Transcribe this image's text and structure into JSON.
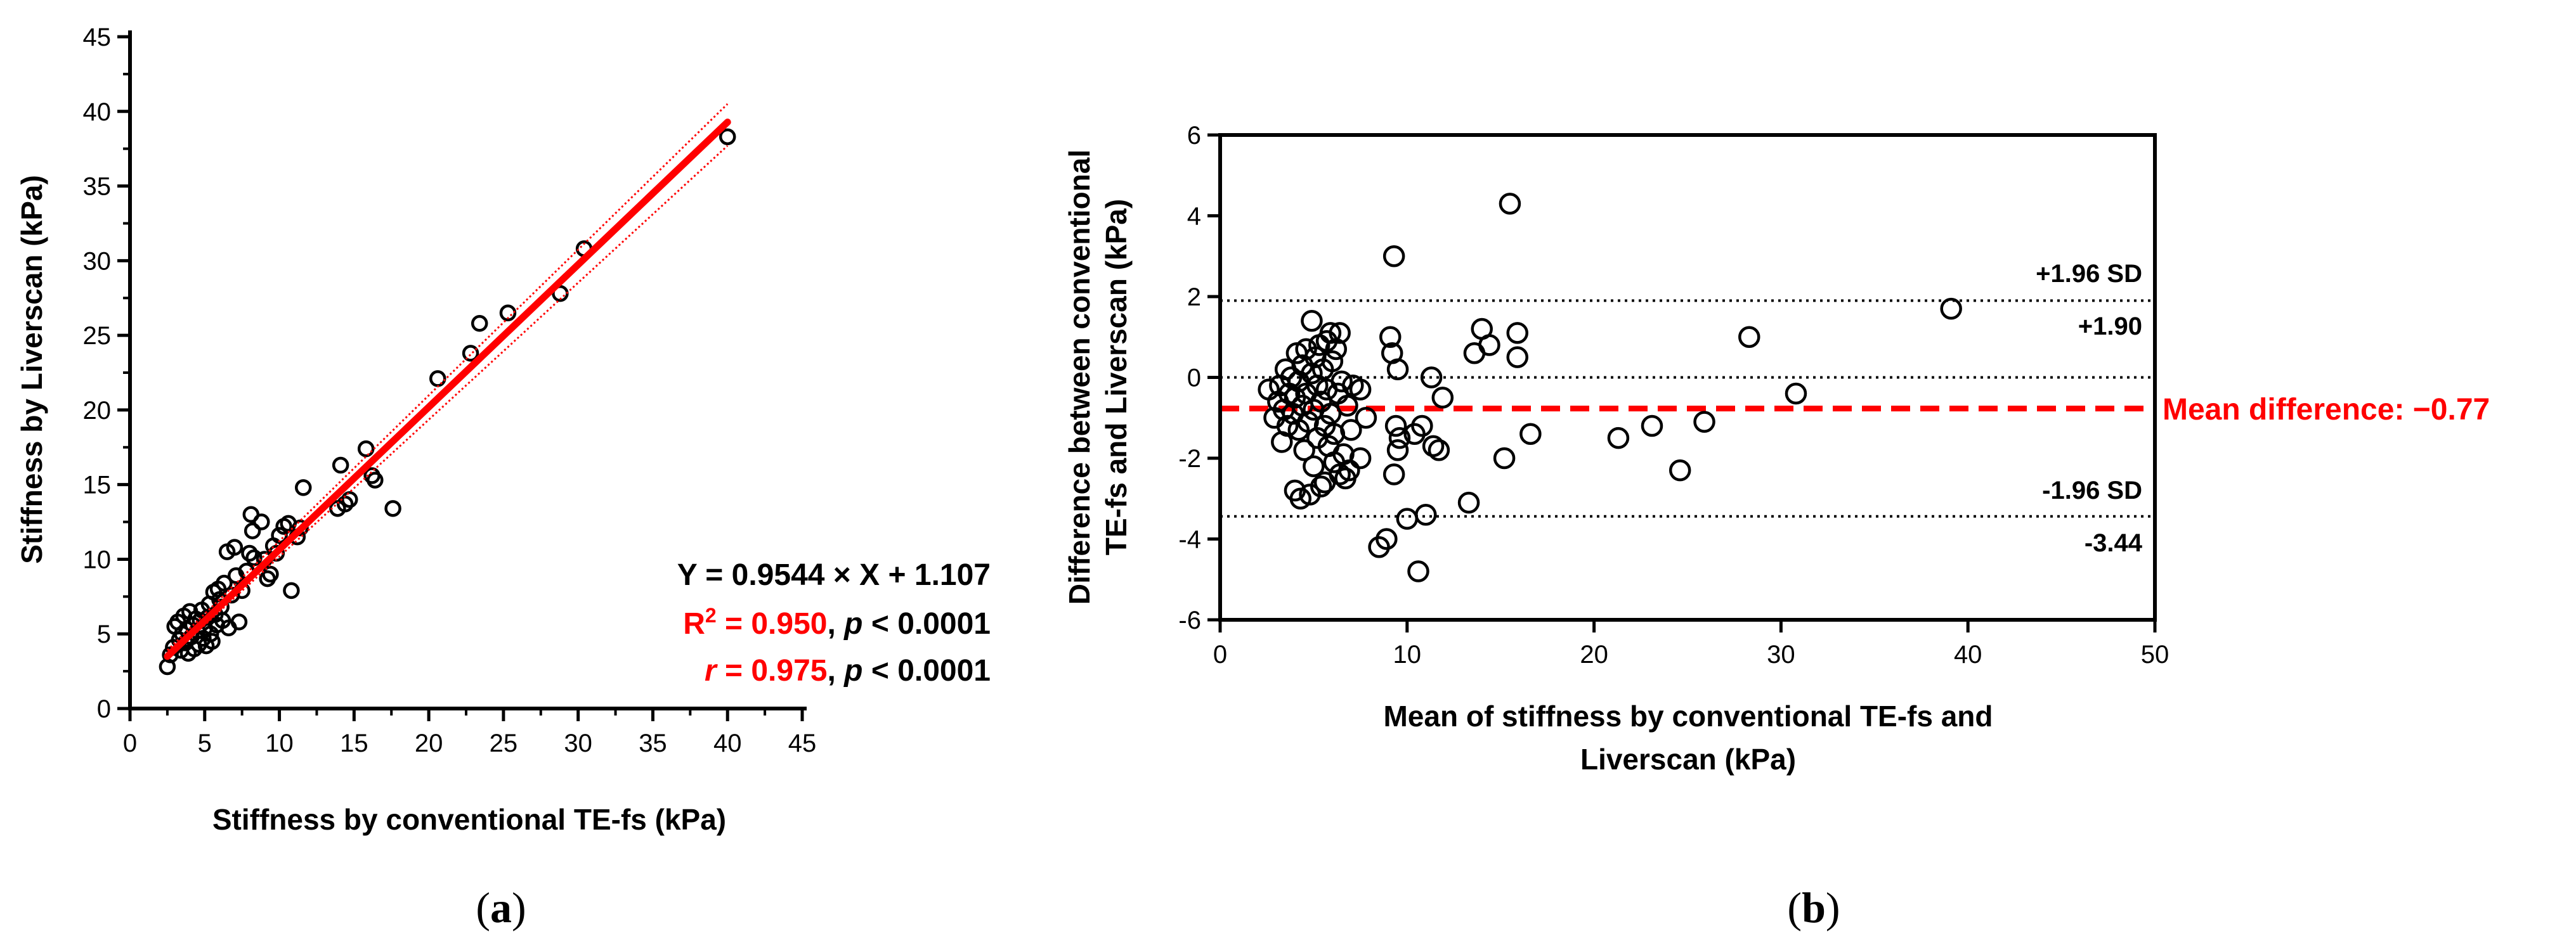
{
  "chart_data": [
    {
      "id": "a",
      "type": "scatter",
      "caption_prefix": "(",
      "caption_letter": "a",
      "caption_suffix": ")",
      "xlabel": "Stiffness by conventional TE-fs (kPa)",
      "ylabel": "Stiffness by Liverscan (kPa)",
      "xlim": [
        0,
        45
      ],
      "ylim": [
        0,
        45
      ],
      "xticks": [
        0,
        5,
        10,
        15,
        20,
        25,
        30,
        35,
        40,
        45
      ],
      "yticks": [
        0,
        5,
        10,
        15,
        20,
        25,
        30,
        35,
        40,
        45
      ],
      "regression": {
        "slope": 0.9544,
        "intercept": 1.107,
        "x_range": [
          2.5,
          40
        ],
        "color": "#ff0000",
        "ci_upper": [
          [
            2.5,
            3.9
          ],
          [
            40,
            40.5
          ]
        ],
        "ci_lower": [
          [
            2.5,
            3.3
          ],
          [
            40,
            37.7
          ]
        ]
      },
      "stats": {
        "equation": "Y = 0.9544 × X + 1.107",
        "r2_label": "R",
        "r2_sup": "2",
        "r2_value": " = 0.950",
        "r2_p_sep": ", ",
        "r2_p": "p",
        "r2_p_value": " < 0.0001",
        "r_label": "r",
        "r_value": " = 0.975",
        "r_p_sep": ", ",
        "r_p": "p",
        "r_p_value": " < 0.0001",
        "highlight_color": "#ff0000"
      },
      "points": [
        [
          2.5,
          2.8
        ],
        [
          2.7,
          3.6
        ],
        [
          2.9,
          4.1
        ],
        [
          3.0,
          5.5
        ],
        [
          3.2,
          5.8
        ],
        [
          3.3,
          4.6
        ],
        [
          3.4,
          3.9
        ],
        [
          3.5,
          5.0
        ],
        [
          3.6,
          6.2
        ],
        [
          3.7,
          4.4
        ],
        [
          3.8,
          5.3
        ],
        [
          3.9,
          3.7
        ],
        [
          4.0,
          6.5
        ],
        [
          4.1,
          4.8
        ],
        [
          4.2,
          5.6
        ],
        [
          4.3,
          4.0
        ],
        [
          4.4,
          6.0
        ],
        [
          4.5,
          5.2
        ],
        [
          4.6,
          4.3
        ],
        [
          4.7,
          5.9
        ],
        [
          4.8,
          6.6
        ],
        [
          4.9,
          4.7
        ],
        [
          5.0,
          5.4
        ],
        [
          5.1,
          4.2
        ],
        [
          5.2,
          6.1
        ],
        [
          5.3,
          7.0
        ],
        [
          5.4,
          5.0
        ],
        [
          5.5,
          4.5
        ],
        [
          5.6,
          7.8
        ],
        [
          5.7,
          6.3
        ],
        [
          5.8,
          5.6
        ],
        [
          5.9,
          8.0
        ],
        [
          6.0,
          7.3
        ],
        [
          6.1,
          6.8
        ],
        [
          6.2,
          5.9
        ],
        [
          6.3,
          8.4
        ],
        [
          6.5,
          10.5
        ],
        [
          6.6,
          5.4
        ],
        [
          6.8,
          7.6
        ],
        [
          7.0,
          10.8
        ],
        [
          7.1,
          8.9
        ],
        [
          7.3,
          5.8
        ],
        [
          7.5,
          7.9
        ],
        [
          7.8,
          9.2
        ],
        [
          8.0,
          10.4
        ],
        [
          8.1,
          13.0
        ],
        [
          8.2,
          11.9
        ],
        [
          8.3,
          10.1
        ],
        [
          8.8,
          12.5
        ],
        [
          9.0,
          10.0
        ],
        [
          9.2,
          8.7
        ],
        [
          9.4,
          9.0
        ],
        [
          9.6,
          10.9
        ],
        [
          9.8,
          10.4
        ],
        [
          10.0,
          11.6
        ],
        [
          10.3,
          12.2
        ],
        [
          10.6,
          12.4
        ],
        [
          10.8,
          7.9
        ],
        [
          11.2,
          11.5
        ],
        [
          11.4,
          12.1
        ],
        [
          11.6,
          14.8
        ],
        [
          13.9,
          13.4
        ],
        [
          14.1,
          16.3
        ],
        [
          14.4,
          13.7
        ],
        [
          14.7,
          14.0
        ],
        [
          15.8,
          17.4
        ],
        [
          16.2,
          15.6
        ],
        [
          16.4,
          15.3
        ],
        [
          17.6,
          13.4
        ],
        [
          20.6,
          22.1
        ],
        [
          22.8,
          23.8
        ],
        [
          23.4,
          25.8
        ],
        [
          25.3,
          26.5
        ],
        [
          28.8,
          27.8
        ],
        [
          30.4,
          30.8
        ],
        [
          40.0,
          38.3
        ]
      ]
    },
    {
      "id": "b",
      "type": "scatter",
      "caption_prefix": "(",
      "caption_letter": "b",
      "caption_suffix": ")",
      "xlabel": "Mean of stiffness by conventional TE-fs and Liverscan (kPa)",
      "xlabel_lines": [
        "Mean of stiffness by conventional TE-fs and",
        "Liverscan (kPa)"
      ],
      "ylabel": "Difference between conventional TE-fs and Liverscan (kPa)",
      "ylabel_lines": [
        "Difference between conventional",
        "TE-fs and Liverscan (kPa)"
      ],
      "xlim": [
        0,
        50
      ],
      "ylim": [
        -6,
        6
      ],
      "xticks": [
        0,
        10,
        20,
        30,
        40,
        50
      ],
      "yticks": [
        -6,
        -4,
        -2,
        0,
        2,
        4,
        6
      ],
      "mean_difference": -0.77,
      "mean_label": "Mean difference: −0.77",
      "mean_color": "#ff0000",
      "upper_loa": 1.9,
      "upper_loa_label": "+1.96 SD",
      "upper_loa_value_label": "+1.90",
      "lower_loa": -3.44,
      "lower_loa_label": "-1.96 SD",
      "lower_loa_value_label": "-3.44",
      "zero_line": 0,
      "points": [
        [
          2.6,
          -0.3
        ],
        [
          2.9,
          -1.0
        ],
        [
          3.1,
          -0.6
        ],
        [
          3.2,
          -0.2
        ],
        [
          3.3,
          -1.6
        ],
        [
          3.4,
          -0.8
        ],
        [
          3.5,
          0.2
        ],
        [
          3.6,
          -1.2
        ],
        [
          3.7,
          -0.4
        ],
        [
          3.8,
          0.0
        ],
        [
          3.9,
          -0.9
        ],
        [
          4.0,
          -2.8
        ],
        [
          4.0,
          -0.5
        ],
        [
          4.1,
          0.6
        ],
        [
          4.2,
          -1.3
        ],
        [
          4.2,
          -0.1
        ],
        [
          4.3,
          -3.0
        ],
        [
          4.4,
          -0.7
        ],
        [
          4.4,
          0.3
        ],
        [
          4.5,
          -1.8
        ],
        [
          4.6,
          -0.4
        ],
        [
          4.6,
          0.7
        ],
        [
          4.7,
          -1.1
        ],
        [
          4.8,
          -2.9
        ],
        [
          4.9,
          1.4
        ],
        [
          4.9,
          0.1
        ],
        [
          5.0,
          -0.8
        ],
        [
          5.0,
          -2.2
        ],
        [
          5.1,
          0.5
        ],
        [
          5.2,
          -1.5
        ],
        [
          5.2,
          -0.2
        ],
        [
          5.3,
          0.8
        ],
        [
          5.4,
          -2.7
        ],
        [
          5.4,
          -0.6
        ],
        [
          5.5,
          0.2
        ],
        [
          5.6,
          -1.2
        ],
        [
          5.6,
          -2.6
        ],
        [
          5.7,
          0.9
        ],
        [
          5.7,
          -0.3
        ],
        [
          5.8,
          -1.7
        ],
        [
          5.9,
          1.1
        ],
        [
          5.9,
          -0.9
        ],
        [
          6.0,
          0.4
        ],
        [
          6.1,
          -1.4
        ],
        [
          6.1,
          -2.1
        ],
        [
          6.2,
          0.7
        ],
        [
          6.3,
          -0.4
        ],
        [
          6.4,
          1.1
        ],
        [
          6.4,
          -2.4
        ],
        [
          6.5,
          -0.1
        ],
        [
          6.6,
          -1.9
        ],
        [
          6.7,
          -2.5
        ],
        [
          6.8,
          -0.7
        ],
        [
          6.9,
          -2.3
        ],
        [
          7.0,
          -1.3
        ],
        [
          7.1,
          -0.2
        ],
        [
          7.5,
          -2.0
        ],
        [
          7.5,
          -0.3
        ],
        [
          7.8,
          -1.0
        ],
        [
          8.5,
          -4.2
        ],
        [
          8.9,
          -4.0
        ],
        [
          9.1,
          1.0
        ],
        [
          9.2,
          0.6
        ],
        [
          9.3,
          3.0
        ],
        [
          9.3,
          -2.4
        ],
        [
          9.4,
          -1.2
        ],
        [
          9.5,
          -1.8
        ],
        [
          9.5,
          0.2
        ],
        [
          9.6,
          -1.5
        ],
        [
          10.0,
          -3.5
        ],
        [
          10.4,
          -1.4
        ],
        [
          10.6,
          -4.8
        ],
        [
          10.8,
          -1.2
        ],
        [
          11.0,
          -3.4
        ],
        [
          11.3,
          0.0
        ],
        [
          11.4,
          -1.7
        ],
        [
          11.7,
          -1.8
        ],
        [
          11.9,
          -0.5
        ],
        [
          13.3,
          -3.1
        ],
        [
          13.6,
          0.6
        ],
        [
          14.0,
          1.2
        ],
        [
          14.4,
          0.8
        ],
        [
          15.2,
          -2.0
        ],
        [
          15.5,
          4.3
        ],
        [
          15.9,
          1.1
        ],
        [
          15.9,
          0.5
        ],
        [
          16.6,
          -1.4
        ],
        [
          21.3,
          -1.5
        ],
        [
          23.1,
          -1.2
        ],
        [
          24.6,
          -2.3
        ],
        [
          25.9,
          -1.1
        ],
        [
          28.3,
          1.0
        ],
        [
          30.8,
          -0.4
        ],
        [
          39.1,
          1.7
        ]
      ]
    }
  ]
}
